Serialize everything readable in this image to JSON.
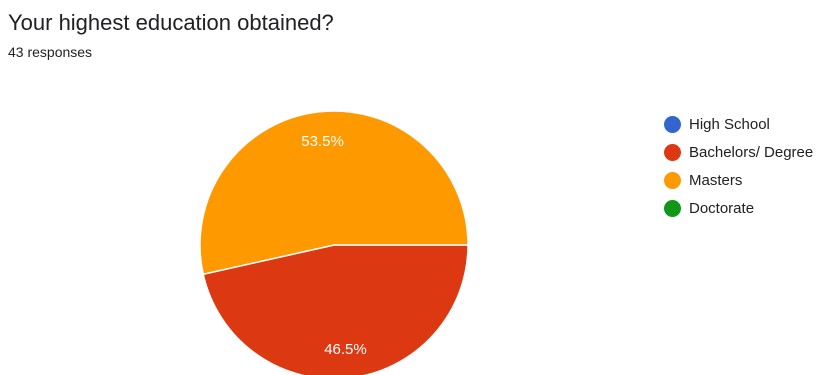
{
  "header": {
    "title": "Your highest education obtained?",
    "subtitle": "43 responses"
  },
  "chart_data": {
    "type": "pie",
    "categories": [
      "High School",
      "Bachelors/ Degree",
      "Masters",
      "Doctorate"
    ],
    "values": [
      0,
      46.5,
      53.5,
      0
    ],
    "data_labels": [
      "",
      "46.5%",
      "53.5%",
      ""
    ],
    "colors": [
      "#3366cc",
      "#dc3912",
      "#ff9900",
      "#109618"
    ],
    "legend": "right",
    "title": "Your highest education obtained?"
  }
}
